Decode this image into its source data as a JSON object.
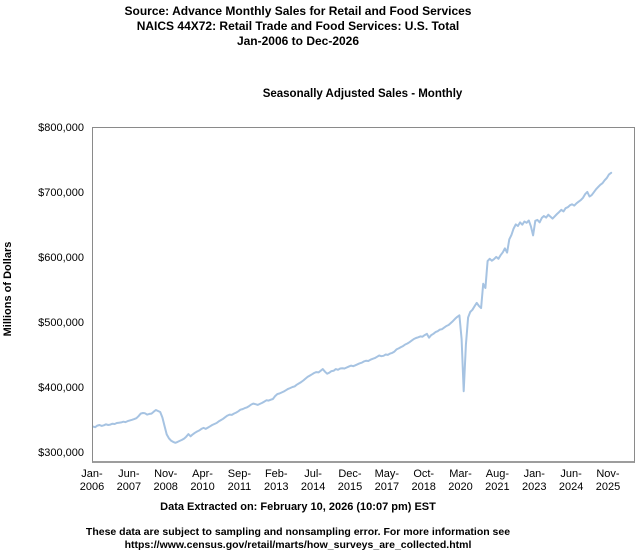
{
  "header": {
    "line1": "Source: Advance Monthly Sales for Retail and Food Services",
    "line2": "NAICS 44X72: Retail Trade and Food Services: U.S. Total",
    "line3": "Jan-2006 to Dec-2026"
  },
  "footer": {
    "extracted": "Data Extracted on: February 10, 2026 (10:07 pm) EST",
    "note_line1": "These data are subject to sampling and nonsampling error. For more information see",
    "note_line2": "https://www.census.gov/retail/marts/how_surveys_are_collected.html"
  },
  "chart_data": {
    "type": "line",
    "title": "Seasonally Adjusted Sales - Monthly",
    "xlabel": "",
    "ylabel": "Millions of Dollars",
    "units": "millions of USD",
    "grid": false,
    "legend": "none",
    "line_color": "#a6c3e2",
    "x_axis_range": [
      "Jan-2006",
      "Dec-2026"
    ],
    "data_range": [
      "Jan-2006",
      "Dec-2025"
    ],
    "x_frequency": "monthly",
    "x_tick_labels": [
      "Jan-2006",
      "Jun-2007",
      "Nov-2008",
      "Apr-2010",
      "Sep-2011",
      "Feb-2013",
      "Jul-2014",
      "Dec-2015",
      "May-2017",
      "Oct-2018",
      "Mar-2020",
      "Aug-2021",
      "Jan-2023",
      "Jun-2024",
      "Nov-2025"
    ],
    "x_tick_month_indices": [
      0,
      17,
      34,
      51,
      68,
      85,
      102,
      119,
      136,
      153,
      170,
      187,
      204,
      221,
      238
    ],
    "y_tick_labels": [
      "$800,000",
      "$700,000",
      "$600,000",
      "$500,000",
      "$400,000",
      "$300,000"
    ],
    "y_tick_values": [
      800000,
      700000,
      600000,
      500000,
      400000,
      300000
    ],
    "ylim_display": [
      290000,
      803000
    ],
    "values": [
      343000,
      342000,
      344500,
      345500,
      344000,
      345000,
      346500,
      345500,
      346000,
      347500,
      347000,
      348500,
      349000,
      349500,
      350500,
      350000,
      351500,
      352500,
      353500,
      354500,
      356000,
      359000,
      363000,
      364000,
      363500,
      361500,
      362500,
      363000,
      366000,
      368500,
      367000,
      365500,
      357000,
      344000,
      331000,
      325000,
      321500,
      319500,
      318000,
      319500,
      321000,
      322500,
      324500,
      327500,
      331500,
      328000,
      331000,
      333500,
      335500,
      337000,
      339500,
      341000,
      339500,
      341500,
      343500,
      345500,
      347000,
      348500,
      351000,
      353000,
      355000,
      357500,
      360000,
      361500,
      361000,
      363000,
      364500,
      366500,
      369000,
      370000,
      371500,
      372500,
      374500,
      377000,
      378500,
      377500,
      376500,
      378000,
      379500,
      381500,
      383500,
      383000,
      384500,
      385500,
      390000,
      393000,
      394000,
      395500,
      397000,
      399000,
      401000,
      402500,
      404000,
      405000,
      407500,
      409500,
      411500,
      414000,
      417000,
      419500,
      421500,
      423500,
      425500,
      427000,
      426500,
      429000,
      431500,
      427500,
      424500,
      426000,
      428500,
      429000,
      431500,
      430500,
      432500,
      433000,
      432500,
      434000,
      435500,
      437000,
      436000,
      437500,
      439000,
      440500,
      441500,
      443500,
      444500,
      444000,
      446000,
      447500,
      448500,
      450500,
      452500,
      451500,
      452000,
      454000,
      453500,
      455500,
      456500,
      458500,
      462000,
      463500,
      465500,
      467000,
      469500,
      471000,
      473000,
      475500,
      478000,
      479500,
      480500,
      482000,
      481500,
      484000,
      486000,
      480000,
      484000,
      486000,
      488500,
      490000,
      492500,
      493000,
      495500,
      498000,
      499500,
      502500,
      505500,
      509000,
      512000,
      514500,
      478000,
      397500,
      469000,
      511000,
      519500,
      523000,
      528500,
      533500,
      529000,
      525500,
      563000,
      556500,
      598000,
      601500,
      598500,
      601000,
      604500,
      601500,
      607000,
      611500,
      617500,
      611000,
      631500,
      638000,
      648000,
      654500,
      652000,
      657500,
      654000,
      659000,
      657000,
      660500,
      651500,
      637500,
      660000,
      661500,
      657500,
      664500,
      667500,
      665000,
      669500,
      666500,
      663500,
      667000,
      670500,
      673500,
      677000,
      674500,
      679500,
      681000,
      684000,
      685500,
      683500,
      687000,
      689500,
      692000,
      695500,
      701000,
      704500,
      697500,
      699500,
      704000,
      708500,
      712000,
      715500,
      718000,
      722500,
      726000,
      731500,
      734000
    ]
  }
}
